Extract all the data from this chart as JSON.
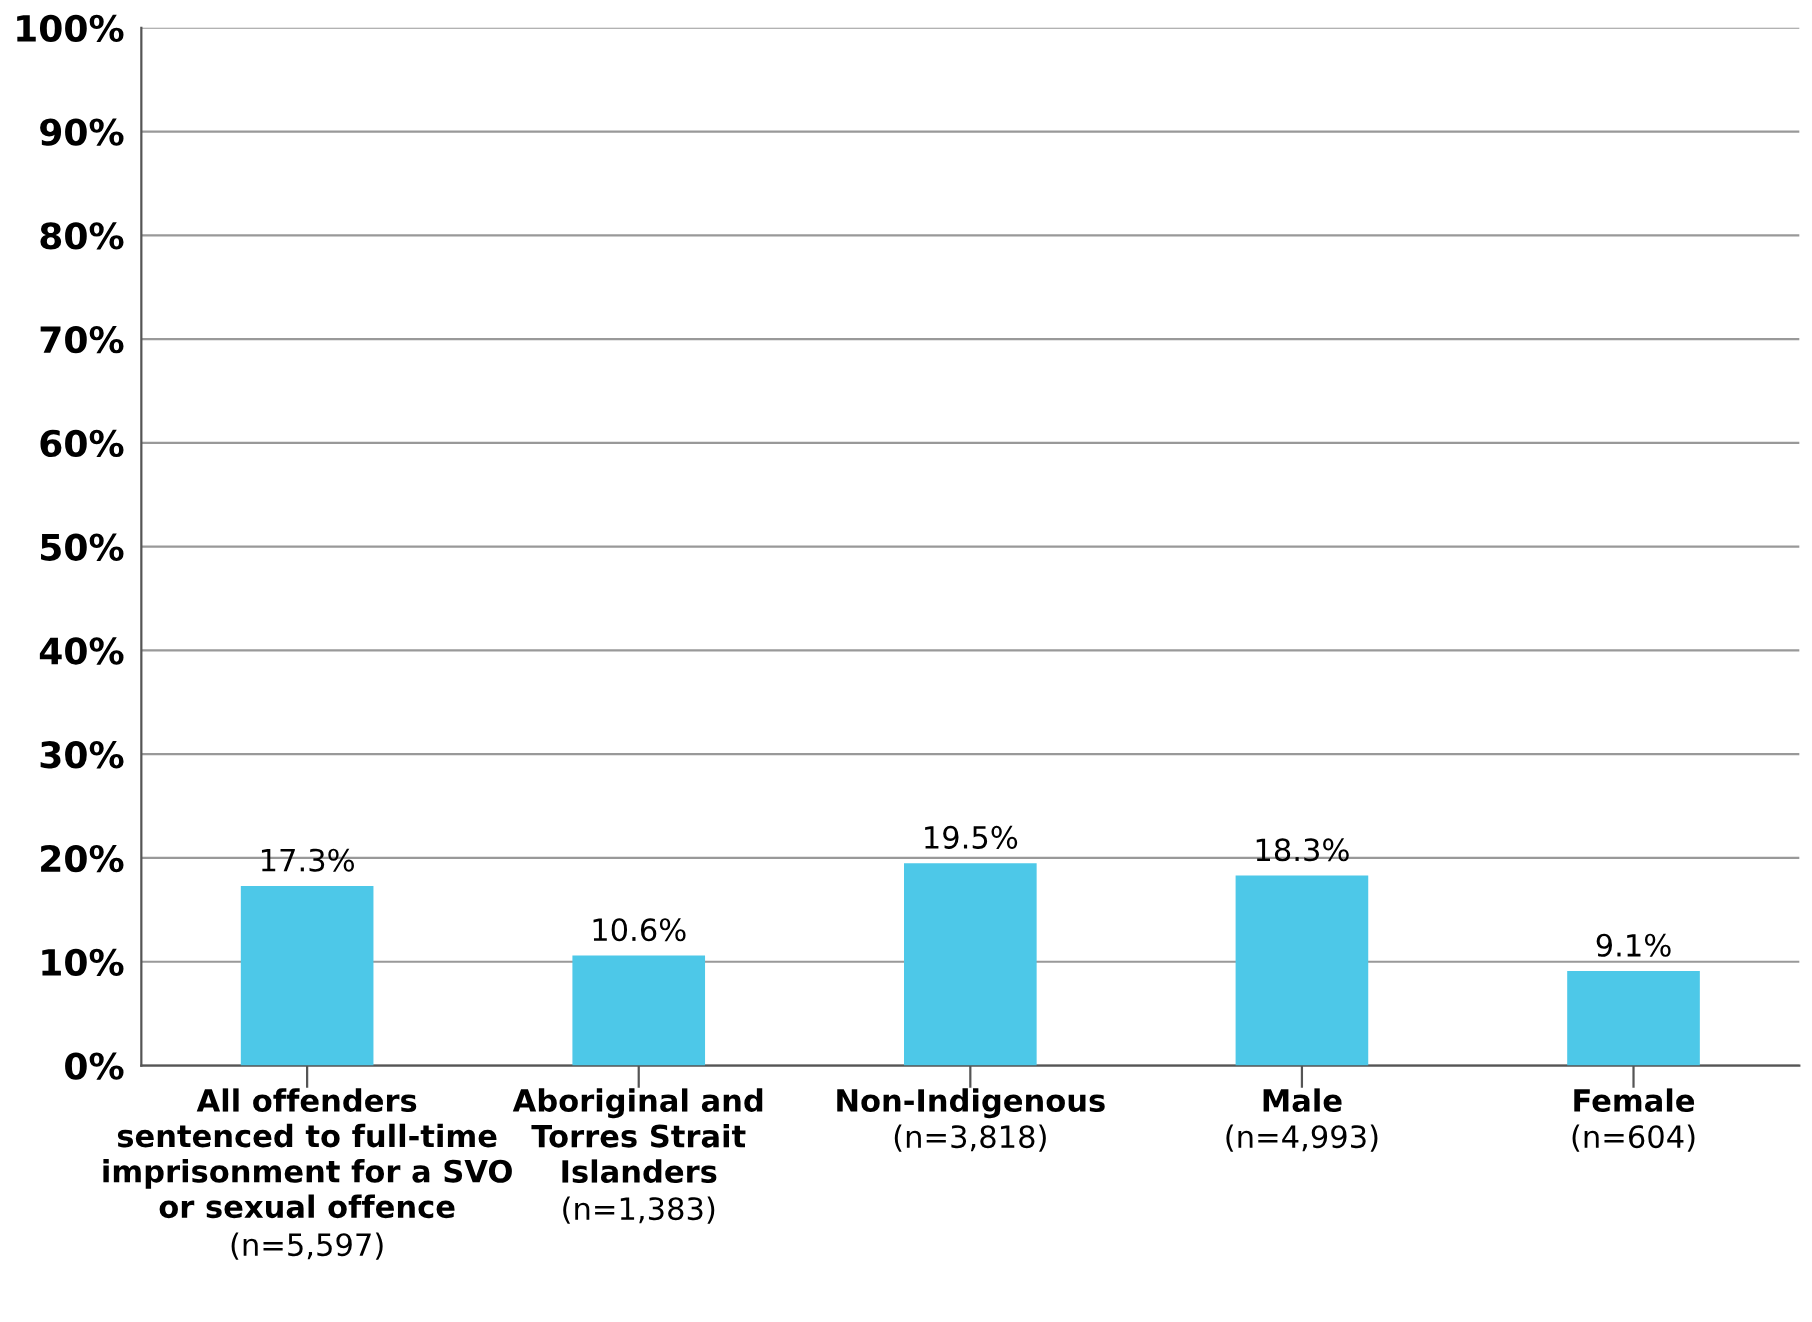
{
  "chart_data": {
    "type": "bar",
    "categories": [
      "All offenders\nsentenced to full-time\nimprisonment for a SVO\nor sexual offence\n(n=5,597)",
      "Aboriginal and\nTorres Strait\nIslanders\n(n=1,383)",
      "Non-Indigenous\n(n=3,818)",
      "Male\n(n=4,993)",
      "Female\n(n=604)"
    ],
    "values": [
      17.3,
      10.6,
      19.5,
      18.3,
      9.1
    ],
    "value_labels": [
      "17.3%",
      "10.6%",
      "19.5%",
      "18.3%",
      "9.1%"
    ],
    "color": "#4dc8e8",
    "ylim": [
      0,
      100
    ],
    "yticks": [
      {
        "value": 0,
        "label": "0%"
      },
      {
        "value": 10,
        "label": "10%"
      },
      {
        "value": 20,
        "label": "20%"
      },
      {
        "value": 30,
        "label": "30%"
      },
      {
        "value": 40,
        "label": "40%"
      },
      {
        "value": 50,
        "label": "50%"
      },
      {
        "value": 60,
        "label": "60%"
      },
      {
        "value": 70,
        "label": "70%"
      },
      {
        "value": 80,
        "label": "80%"
      },
      {
        "value": 90,
        "label": "90%"
      },
      {
        "value": 100,
        "label": "100%"
      }
    ],
    "grid": "y"
  }
}
